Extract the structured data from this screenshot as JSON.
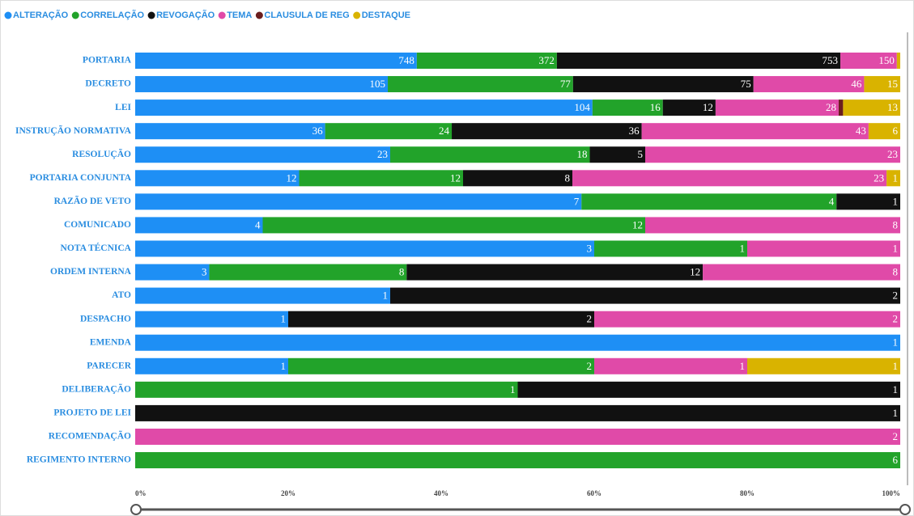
{
  "chart_data": {
    "type": "stacked-bar-100",
    "categories": [
      "PORTARIA",
      "DECRETO",
      "LEI",
      "INSTRUÇÃO NORMATIVA",
      "RESOLUÇÃO",
      "PORTARIA CONJUNTA",
      "RAZÃO DE VETO",
      "COMUNICADO",
      "NOTA TÉCNICA",
      "ORDEM INTERNA",
      "ATO",
      "DESPACHO",
      "EMENDA",
      "PARECER",
      "DELIBERAÇÃO",
      "PROJETO DE LEI",
      "RECOMENDAÇÃO",
      "REGIMENTO INTERNO"
    ],
    "series": [
      {
        "name": "ALTERAÇÃO",
        "color": "#1e8ff5",
        "values": [
          748,
          105,
          104,
          36,
          23,
          12,
          7,
          4,
          3,
          3,
          1,
          1,
          1,
          1,
          null,
          null,
          null,
          null
        ]
      },
      {
        "name": "CORRELAÇÃO",
        "color": "#22a32a",
        "values": [
          372,
          77,
          16,
          24,
          18,
          12,
          4,
          12,
          1,
          8,
          null,
          null,
          null,
          2,
          1,
          null,
          null,
          6
        ]
      },
      {
        "name": "REVOGAÇÃO",
        "color": "#111111",
        "values": [
          753,
          75,
          12,
          36,
          5,
          8,
          1,
          null,
          null,
          12,
          2,
          2,
          null,
          null,
          1,
          1,
          null,
          null
        ]
      },
      {
        "name": "TEMA",
        "color": "#e04aa8",
        "values": [
          150,
          46,
          28,
          43,
          23,
          23,
          null,
          8,
          1,
          8,
          null,
          2,
          null,
          1,
          null,
          null,
          2,
          null
        ]
      },
      {
        "name": "CLAUSULA DE  REG",
        "color": "#6b1e1e",
        "values": [
          null,
          null,
          1,
          null,
          null,
          null,
          null,
          null,
          null,
          null,
          null,
          null,
          null,
          null,
          null,
          null,
          null,
          null
        ]
      },
      {
        "name": "DESTAQUE",
        "color": "#d9b300",
        "values": [
          9,
          15,
          13,
          6,
          null,
          1,
          null,
          null,
          null,
          null,
          null,
          null,
          null,
          1,
          null,
          null,
          null,
          null
        ]
      }
    ],
    "xlim": [
      0,
      100
    ],
    "xticks": [
      {
        "value": 0,
        "label": "0%"
      },
      {
        "value": 20,
        "label": "20%"
      },
      {
        "value": 40,
        "label": "40%"
      },
      {
        "value": 60,
        "label": "60%"
      },
      {
        "value": 80,
        "label": "80%"
      },
      {
        "value": 100,
        "label": "100%"
      }
    ]
  }
}
